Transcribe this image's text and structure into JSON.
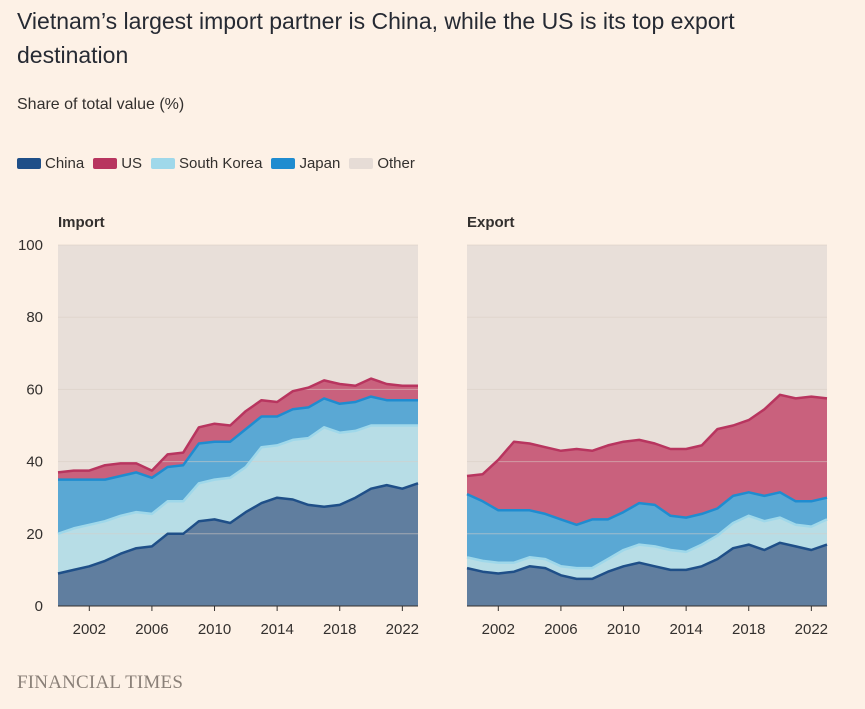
{
  "title": "Vietnam’s largest import partner is China, while the US is its top export destination",
  "subtitle": "Share of total value (%)",
  "source": "FINANCIAL TIMES",
  "legend": [
    {
      "name": "China",
      "color": "#1f4f88"
    },
    {
      "name": "US",
      "color": "#b8355f"
    },
    {
      "name": "South Korea",
      "color": "#9fd8ea"
    },
    {
      "name": "Japan",
      "color": "#1f8cd0"
    },
    {
      "name": "Other",
      "color": "#e6dcd6"
    }
  ],
  "colors": {
    "china": "#607e9f",
    "china_line": "#1f4f88",
    "us": "#c9617d",
    "us_line": "#b8355f",
    "korea": "#b7dde6",
    "korea_line": "#9fd8ea",
    "japan": "#5aa8d4",
    "japan_line": "#1f8cd0",
    "other": "#e8dfd9",
    "grid": "#d9cdc4"
  },
  "chart_data": [
    {
      "type": "area",
      "stacked": true,
      "title": "Import",
      "x": [
        2000,
        2001,
        2002,
        2003,
        2004,
        2005,
        2006,
        2007,
        2008,
        2009,
        2010,
        2011,
        2012,
        2013,
        2014,
        2015,
        2016,
        2017,
        2018,
        2019,
        2020,
        2021,
        2022,
        2023
      ],
      "ylim": [
        0,
        100
      ],
      "yticks": [
        0,
        20,
        40,
        60,
        80,
        100
      ],
      "xticks": [
        2002,
        2006,
        2010,
        2014,
        2018,
        2022
      ],
      "series": [
        {
          "name": "China",
          "values": [
            9,
            10,
            11,
            12.5,
            14.5,
            16,
            16.5,
            20,
            20,
            23.5,
            24,
            23,
            26,
            28.5,
            30,
            29.5,
            28,
            27.5,
            28,
            30,
            32.5,
            33.5,
            32.5,
            34
          ]
        },
        {
          "name": "South Korea",
          "values": [
            11,
            11.5,
            11.5,
            11,
            10.5,
            10,
            9,
            9,
            9,
            10.5,
            11,
            12.5,
            12.5,
            15.5,
            14.5,
            16.5,
            18.5,
            22,
            20,
            18.5,
            17.5,
            16.5,
            17.5,
            16
          ]
        },
        {
          "name": "Japan",
          "values": [
            15,
            13.5,
            12.5,
            11.5,
            11,
            11,
            10,
            9.5,
            10,
            11,
            10.5,
            10,
            10.5,
            8.5,
            8,
            8.5,
            8.5,
            8,
            8,
            8,
            8,
            7,
            7,
            7
          ]
        },
        {
          "name": "US",
          "values": [
            2,
            2.5,
            2.5,
            4,
            3.5,
            2.5,
            2,
            3.5,
            3.5,
            4.5,
            5,
            4.5,
            5,
            4.5,
            4,
            5,
            5.5,
            5,
            5.5,
            4.5,
            5,
            4.5,
            4,
            4
          ]
        },
        {
          "name": "Other",
          "values": [
            63,
            62.5,
            62.5,
            61,
            60.5,
            60.5,
            62.5,
            58,
            57.5,
            50.5,
            49.5,
            50,
            46,
            43,
            43.5,
            40.5,
            39.5,
            37.5,
            38.5,
            39,
            37,
            38.5,
            39,
            39
          ]
        }
      ]
    },
    {
      "type": "area",
      "stacked": true,
      "title": "Export",
      "x": [
        2000,
        2001,
        2002,
        2003,
        2004,
        2005,
        2006,
        2007,
        2008,
        2009,
        2010,
        2011,
        2012,
        2013,
        2014,
        2015,
        2016,
        2017,
        2018,
        2019,
        2020,
        2021,
        2022,
        2023
      ],
      "ylim": [
        0,
        100
      ],
      "yticks": [
        0,
        20,
        40,
        60,
        80,
        100
      ],
      "xticks": [
        2002,
        2006,
        2010,
        2014,
        2018,
        2022
      ],
      "series": [
        {
          "name": "China",
          "values": [
            10.5,
            9.5,
            9,
            9.5,
            11,
            10.5,
            8.5,
            7.5,
            7.5,
            9.5,
            11,
            12,
            11,
            10,
            10,
            11,
            13,
            16,
            17,
            15.5,
            17.5,
            16.5,
            15.5,
            17
          ]
        },
        {
          "name": "South Korea",
          "values": [
            3,
            3,
            3,
            2.5,
            2.5,
            2.5,
            2.5,
            3,
            3,
            3.5,
            4.5,
            5,
            5.5,
            5.5,
            5,
            6,
            6.5,
            7,
            8,
            8,
            7,
            6,
            6.5,
            7
          ]
        },
        {
          "name": "Japan",
          "values": [
            17.5,
            16.5,
            14.5,
            14.5,
            13,
            12.5,
            13,
            12,
            13.5,
            11,
            10.5,
            11.5,
            11.5,
            9.5,
            9.5,
            8.5,
            7.5,
            7.5,
            6.5,
            7,
            7,
            6.5,
            7,
            6
          ]
        },
        {
          "name": "US",
          "values": [
            5,
            7.5,
            14,
            19,
            18.5,
            18.5,
            19,
            21,
            19,
            20.5,
            19.5,
            17.5,
            17,
            18.5,
            19,
            19,
            22,
            19.5,
            20,
            24,
            27,
            28.5,
            29,
            27.5
          ]
        },
        {
          "name": "Other",
          "values": [
            64,
            63.5,
            59.5,
            54.5,
            55,
            56,
            57,
            56.5,
            57,
            55.5,
            54.5,
            54,
            55,
            56.5,
            56.5,
            55.5,
            51,
            50,
            48.5,
            45.5,
            41.5,
            42.5,
            42,
            42.5
          ]
        }
      ]
    }
  ]
}
